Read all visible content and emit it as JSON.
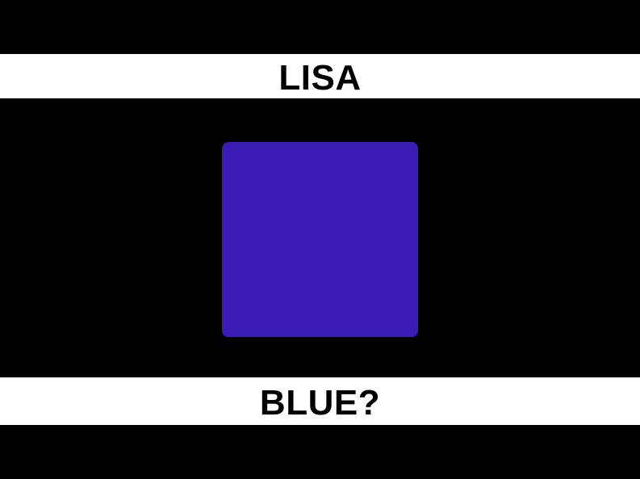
{
  "header": {
    "name": "LISA"
  },
  "swatch": {
    "color": "#3a1cb4"
  },
  "footer": {
    "question": "BLUE?"
  },
  "colors": {
    "background": "#000000",
    "band": "#ffffff",
    "text": "#000000"
  }
}
